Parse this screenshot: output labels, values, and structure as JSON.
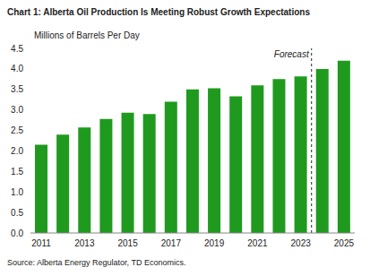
{
  "chart_data": {
    "type": "bar",
    "title": "Chart 1: Alberta Oil Production Is Meeting Robust Growth Expectations",
    "subtitle": "Millions of Barrels Per Day",
    "source": "Source: Alberta Energy Regulator, TD Economics.",
    "x": [
      2011,
      2012,
      2013,
      2014,
      2015,
      2016,
      2017,
      2018,
      2019,
      2020,
      2021,
      2022,
      2023,
      2024,
      2025
    ],
    "values": [
      2.15,
      2.4,
      2.57,
      2.78,
      2.93,
      2.9,
      3.2,
      3.5,
      3.53,
      3.33,
      3.6,
      3.75,
      3.82,
      4.0,
      4.2
    ],
    "color": "#1f9a1f",
    "xlim": [
      2010.5,
      2025.5
    ],
    "xticks": [
      2011,
      2013,
      2015,
      2017,
      2019,
      2021,
      2023,
      2025
    ],
    "ylim": [
      0,
      4.5
    ],
    "yticks": [
      {
        "value": 0,
        "label": "0.0"
      },
      0.5,
      {
        "value": 1,
        "label": "1.0"
      },
      1.5,
      {
        "value": 2,
        "label": "2.0"
      },
      2.5,
      {
        "value": 3,
        "label": "3.0"
      },
      3.5,
      {
        "value": 4,
        "label": "4.0"
      },
      4.5
    ],
    "grid": false,
    "annotations": [
      {
        "text": "Forecast",
        "x": 2023.5
      }
    ]
  }
}
